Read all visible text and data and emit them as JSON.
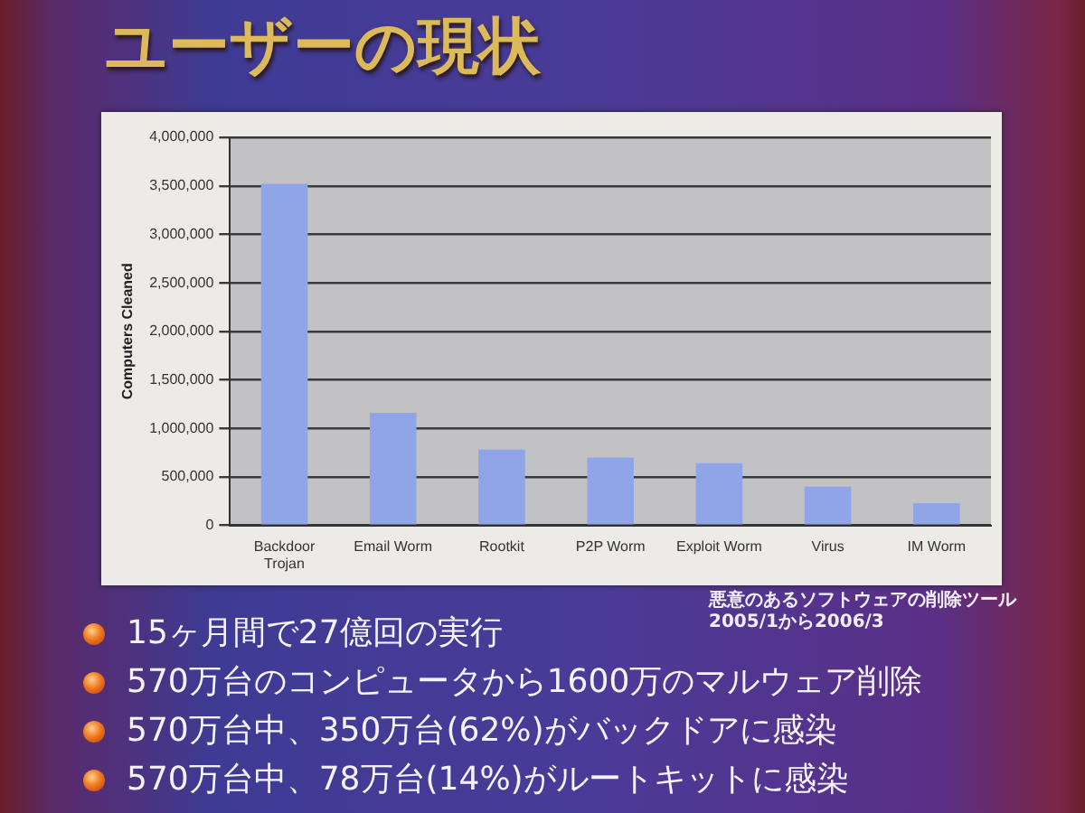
{
  "chart_data": {
    "type": "bar",
    "title": "ユーザーの現状",
    "ylabel": "Computers Cleaned",
    "categories": [
      "Backdoor Trojan",
      "Email Worm",
      "Rootkit",
      "P2P Worm",
      "Exploit Worm",
      "Virus",
      "IM Worm"
    ],
    "values": [
      3520000,
      1160000,
      780000,
      700000,
      640000,
      400000,
      230000
    ],
    "color": "#8fa5e8",
    "ylim": [
      0,
      4000000
    ],
    "yticks": [
      {
        "value": 0,
        "label": "0"
      },
      {
        "value": 500000,
        "label": "500,000"
      },
      {
        "value": 1000000,
        "label": "1,000,000"
      },
      {
        "value": 1500000,
        "label": "1,500,000"
      },
      {
        "value": 2000000,
        "label": "2,000,000"
      },
      {
        "value": 2500000,
        "label": "2,500,000"
      },
      {
        "value": 3000000,
        "label": "3,000,000"
      },
      {
        "value": 3500000,
        "label": "3,500,000"
      },
      {
        "value": 4000000,
        "label": "4,000,000"
      }
    ],
    "grid": "y",
    "annotations": [
      "悪意のあるソフトウェアの削除ツール\n2005/1から2006/3",
      "15ヶ月間で27億回の実行",
      "570万台のコンピュータから1600万のマルウェア削除",
      "570万台中、350万台(62%)がバックドアに感染",
      "570万台中、78万台(14%)がルートキットに感染"
    ]
  }
}
